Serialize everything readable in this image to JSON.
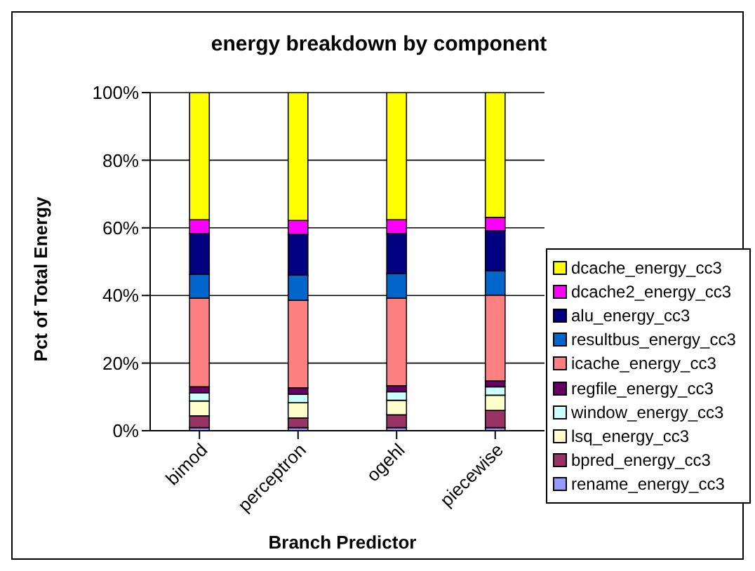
{
  "chart_data": {
    "type": "bar",
    "stacked": true,
    "title": "energy breakdown by component",
    "xlabel": "Branch Predictor",
    "ylabel": "Pct of Total Energy",
    "categories": [
      "bimod",
      "perceptron",
      "ogehl",
      "piecewise"
    ],
    "series": [
      {
        "name": "rename_energy_cc3",
        "color": "#9999ff",
        "values": [
          0.9,
          0.9,
          0.9,
          0.9
        ]
      },
      {
        "name": "bpred_energy_cc3",
        "color": "#993366",
        "values": [
          3.5,
          2.9,
          3.8,
          5.1
        ]
      },
      {
        "name": "lsq_energy_cc3",
        "color": "#ffffcc",
        "values": [
          4.4,
          4.5,
          4.3,
          4.5
        ]
      },
      {
        "name": "window_energy_cc3",
        "color": "#ccffff",
        "values": [
          2.4,
          2.5,
          2.5,
          2.5
        ]
      },
      {
        "name": "regfile_energy_cc3",
        "color": "#660066",
        "values": [
          1.8,
          1.9,
          1.8,
          1.7
        ]
      },
      {
        "name": "icache_energy_cc3",
        "color": "#ff8080",
        "values": [
          26.2,
          25.9,
          25.9,
          25.4
        ]
      },
      {
        "name": "resultbus_energy_cc3",
        "color": "#0066cc",
        "values": [
          7,
          7.4,
          7.3,
          7.2
        ]
      },
      {
        "name": "alu_energy_cc3",
        "color": "#000080",
        "values": [
          12.1,
          12.1,
          11.8,
          11.8
        ]
      },
      {
        "name": "dcache2_energy_cc3",
        "color": "#ff00ff",
        "values": [
          4.1,
          4.1,
          4.1,
          4
        ]
      },
      {
        "name": "dcache_energy_cc3",
        "color": "#ffff00",
        "values": [
          37.6,
          37.8,
          37.6,
          36.9
        ]
      }
    ],
    "ylim": [
      0,
      100
    ],
    "yticks": [
      {
        "value": 0,
        "label": "0%"
      },
      {
        "value": 20,
        "label": "20%"
      },
      {
        "value": 40,
        "label": "40%"
      },
      {
        "value": 60,
        "label": "60%"
      },
      {
        "value": 80,
        "label": "80%"
      },
      {
        "value": 100,
        "label": "100%"
      }
    ],
    "grid": "y",
    "legend": "right"
  }
}
